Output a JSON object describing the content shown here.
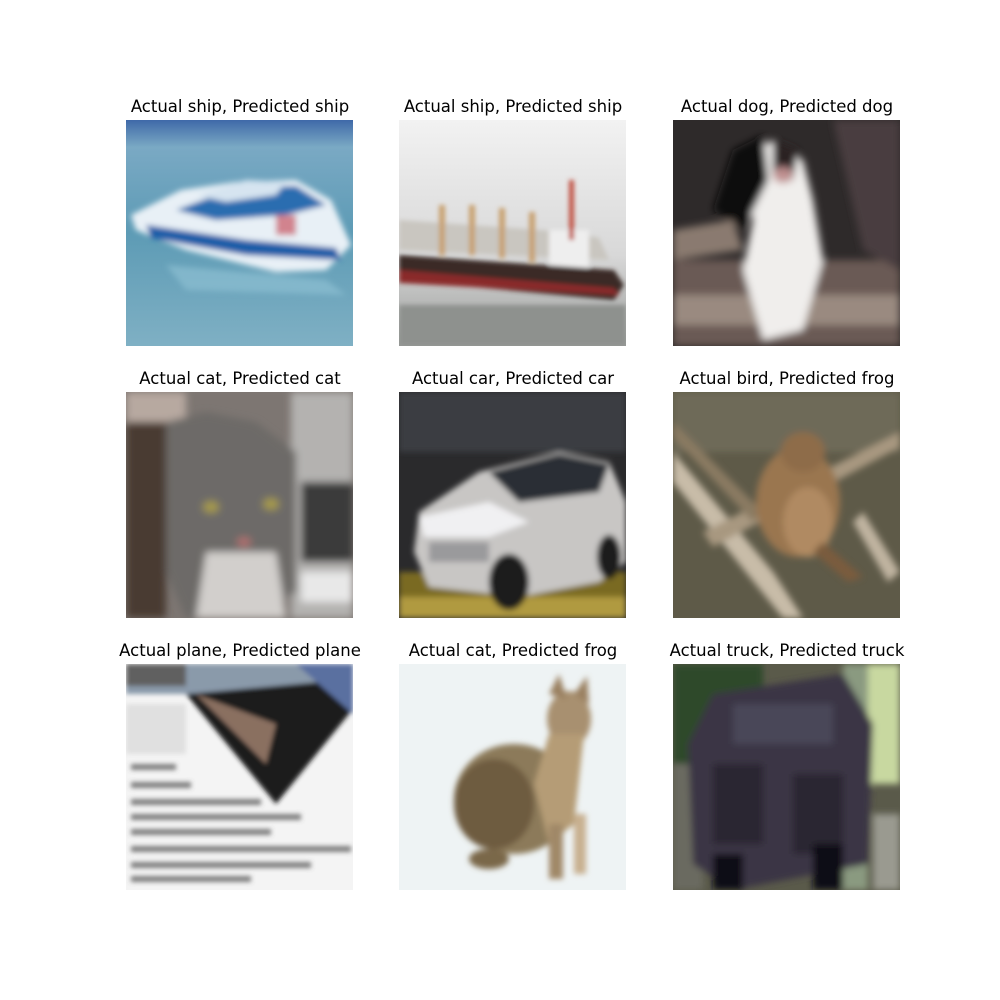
{
  "figure": {
    "panels": [
      {
        "actual": "ship",
        "predicted": "ship",
        "title": "Actual ship, Predicted ship",
        "subject": "white and blue speedboat on water"
      },
      {
        "actual": "ship",
        "predicted": "ship",
        "title": "Actual ship, Predicted ship",
        "subject": "cargo ship with dark hull"
      },
      {
        "actual": "dog",
        "predicted": "dog",
        "title": "Actual dog, Predicted dog",
        "subject": "black and white dog"
      },
      {
        "actual": "cat",
        "predicted": "cat",
        "title": "Actual cat, Predicted cat",
        "subject": "grey tabby cat face"
      },
      {
        "actual": "car",
        "predicted": "car",
        "title": "Actual car, Predicted car",
        "subject": "silver car in showroom"
      },
      {
        "actual": "bird",
        "predicted": "frog",
        "title": "Actual bird, Predicted frog",
        "subject": "brown bird on branches"
      },
      {
        "actual": "plane",
        "predicted": "plane",
        "title": "Actual plane, Predicted plane",
        "subject": "dark plane over text page"
      },
      {
        "actual": "cat",
        "predicted": "frog",
        "title": "Actual cat, Predicted frog",
        "subject": "tabby cat on white background"
      },
      {
        "actual": "truck",
        "predicted": "truck",
        "title": "Actual truck, Predicted truck",
        "subject": "dark truck among trees"
      }
    ]
  }
}
